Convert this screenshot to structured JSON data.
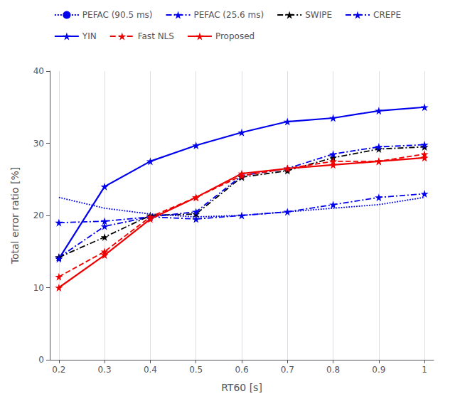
{
  "chart_data": {
    "type": "line",
    "x": [
      0.2,
      0.3,
      0.4,
      0.5,
      0.6,
      0.7,
      0.8,
      0.9,
      1.0
    ],
    "series": [
      {
        "name": "PEFAC (90.5 ms)",
        "color": "#0000ee",
        "line_style": "dotted",
        "marker": "none",
        "values": [
          22.5,
          21.0,
          20.2,
          19.8,
          20.0,
          20.5,
          21.0,
          21.5,
          22.5
        ]
      },
      {
        "name": "PEFAC (25.6 ms)",
        "color": "#0000ee",
        "line_style": "dashdot",
        "marker": "star",
        "values": [
          14.2,
          18.5,
          19.8,
          19.5,
          20.0,
          20.5,
          21.5,
          22.5,
          23.0
        ]
      },
      {
        "name": "SWIPE",
        "color": "#000000",
        "line_style": "dashdot",
        "marker": "star",
        "values": [
          14.2,
          17.0,
          20.0,
          20.2,
          25.3,
          26.2,
          28.0,
          29.2,
          29.5
        ]
      },
      {
        "name": "CREPE",
        "color": "#0000ee",
        "line_style": "dashdot",
        "marker": "star",
        "values": [
          19.0,
          19.2,
          19.8,
          20.5,
          25.5,
          26.5,
          28.5,
          29.5,
          29.8
        ]
      },
      {
        "name": "YIN",
        "color": "#0000ee",
        "line_style": "solid",
        "marker": "star",
        "values": [
          14.0,
          24.0,
          27.5,
          29.7,
          31.5,
          33.0,
          33.5,
          34.5,
          35.0
        ]
      },
      {
        "name": "Fast NLS",
        "color": "#ee0000",
        "line_style": "dashed",
        "marker": "star",
        "values": [
          11.5,
          15.0,
          19.8,
          22.5,
          25.5,
          26.5,
          27.5,
          27.5,
          28.5
        ]
      },
      {
        "name": "Proposed",
        "color": "#ee0000",
        "line_style": "solid",
        "marker": "star",
        "values": [
          10.0,
          14.5,
          19.5,
          22.5,
          25.8,
          26.5,
          27.0,
          27.5,
          28.0
        ]
      }
    ],
    "x_label": "RT60 [s]",
    "y_label": "Total error ratio [%]",
    "xlim": [
      0.18,
      1.02
    ],
    "ylim": [
      0,
      40
    ],
    "xticks": [
      0.2,
      0.3,
      0.4,
      0.5,
      0.6,
      0.7,
      0.8,
      0.9,
      1
    ],
    "yticks": [
      0,
      10,
      20,
      30,
      40
    ],
    "grid": "x",
    "legend": "top"
  }
}
